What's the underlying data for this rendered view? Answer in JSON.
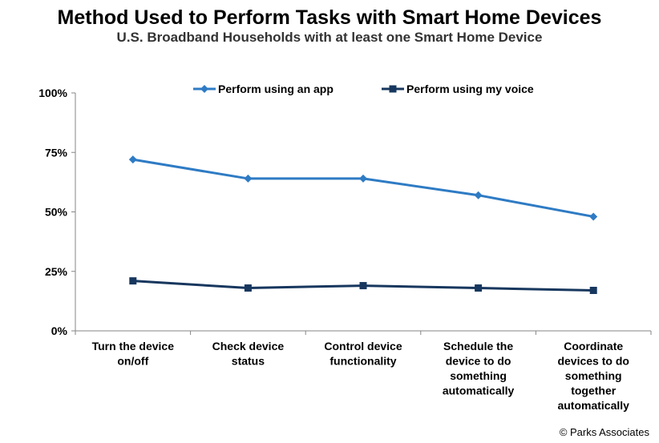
{
  "chart_data": {
    "type": "line",
    "title": "Method Used to Perform Tasks with Smart Home Devices",
    "subtitle": "U.S. Broadband Households with at least one Smart Home Device",
    "categories": [
      [
        "Turn the device",
        "on/off"
      ],
      [
        "Check device",
        "status"
      ],
      [
        "Control device",
        "functionality"
      ],
      [
        "Schedule the",
        "device to do",
        "something",
        "automatically"
      ],
      [
        "Coordinate",
        "devices to do",
        "something",
        "together",
        "automatically"
      ]
    ],
    "y_ticks": [
      "0%",
      "25%",
      "50%",
      "75%",
      "100%"
    ],
    "ylim": [
      0,
      100
    ],
    "y_unit": "%",
    "legend_position": "top",
    "grid": false,
    "series": [
      {
        "name": "Perform using an app",
        "color": "#2E7BC4",
        "marker": "diamond",
        "values": [
          72,
          64,
          64,
          57,
          48
        ]
      },
      {
        "name": "Perform using my voice",
        "color": "#17375E",
        "marker": "square",
        "values": [
          21,
          18,
          19,
          18,
          17
        ]
      }
    ]
  },
  "credit": "© Parks Associates"
}
